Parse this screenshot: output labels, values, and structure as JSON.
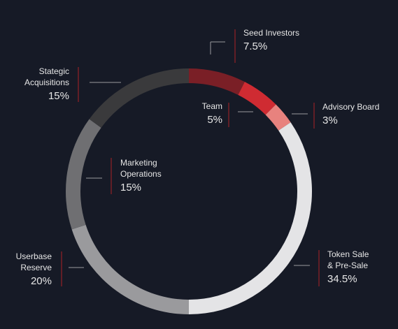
{
  "chart_data": {
    "type": "pie",
    "title": "",
    "slices": [
      {
        "label": [
          "Seed Investors"
        ],
        "value_label": "7.5%",
        "value": 7.5,
        "color": "#7a1f26"
      },
      {
        "label": [
          "Team"
        ],
        "value_label": "5%",
        "value": 5,
        "color": "#cf2b32"
      },
      {
        "label": [
          "Advisory Board"
        ],
        "value_label": "3%",
        "value": 3,
        "color": "#e8827e"
      },
      {
        "label": [
          "Token Sale",
          "& Pre-Sale"
        ],
        "value_label": "34.5%",
        "value": 34.5,
        "color": "#e4e4e6"
      },
      {
        "label": [
          "Userbase",
          "Reserve"
        ],
        "value_label": "20%",
        "value": 20,
        "color": "#9a9a9d"
      },
      {
        "label": [
          "Marketing",
          "Operations"
        ],
        "value_label": "15%",
        "value": 15,
        "color": "#6f6f72"
      },
      {
        "label": [
          "Stategic",
          "Acquisitions"
        ],
        "value_label": "15%",
        "value": 15,
        "color": "#3a3a3c"
      }
    ]
  }
}
